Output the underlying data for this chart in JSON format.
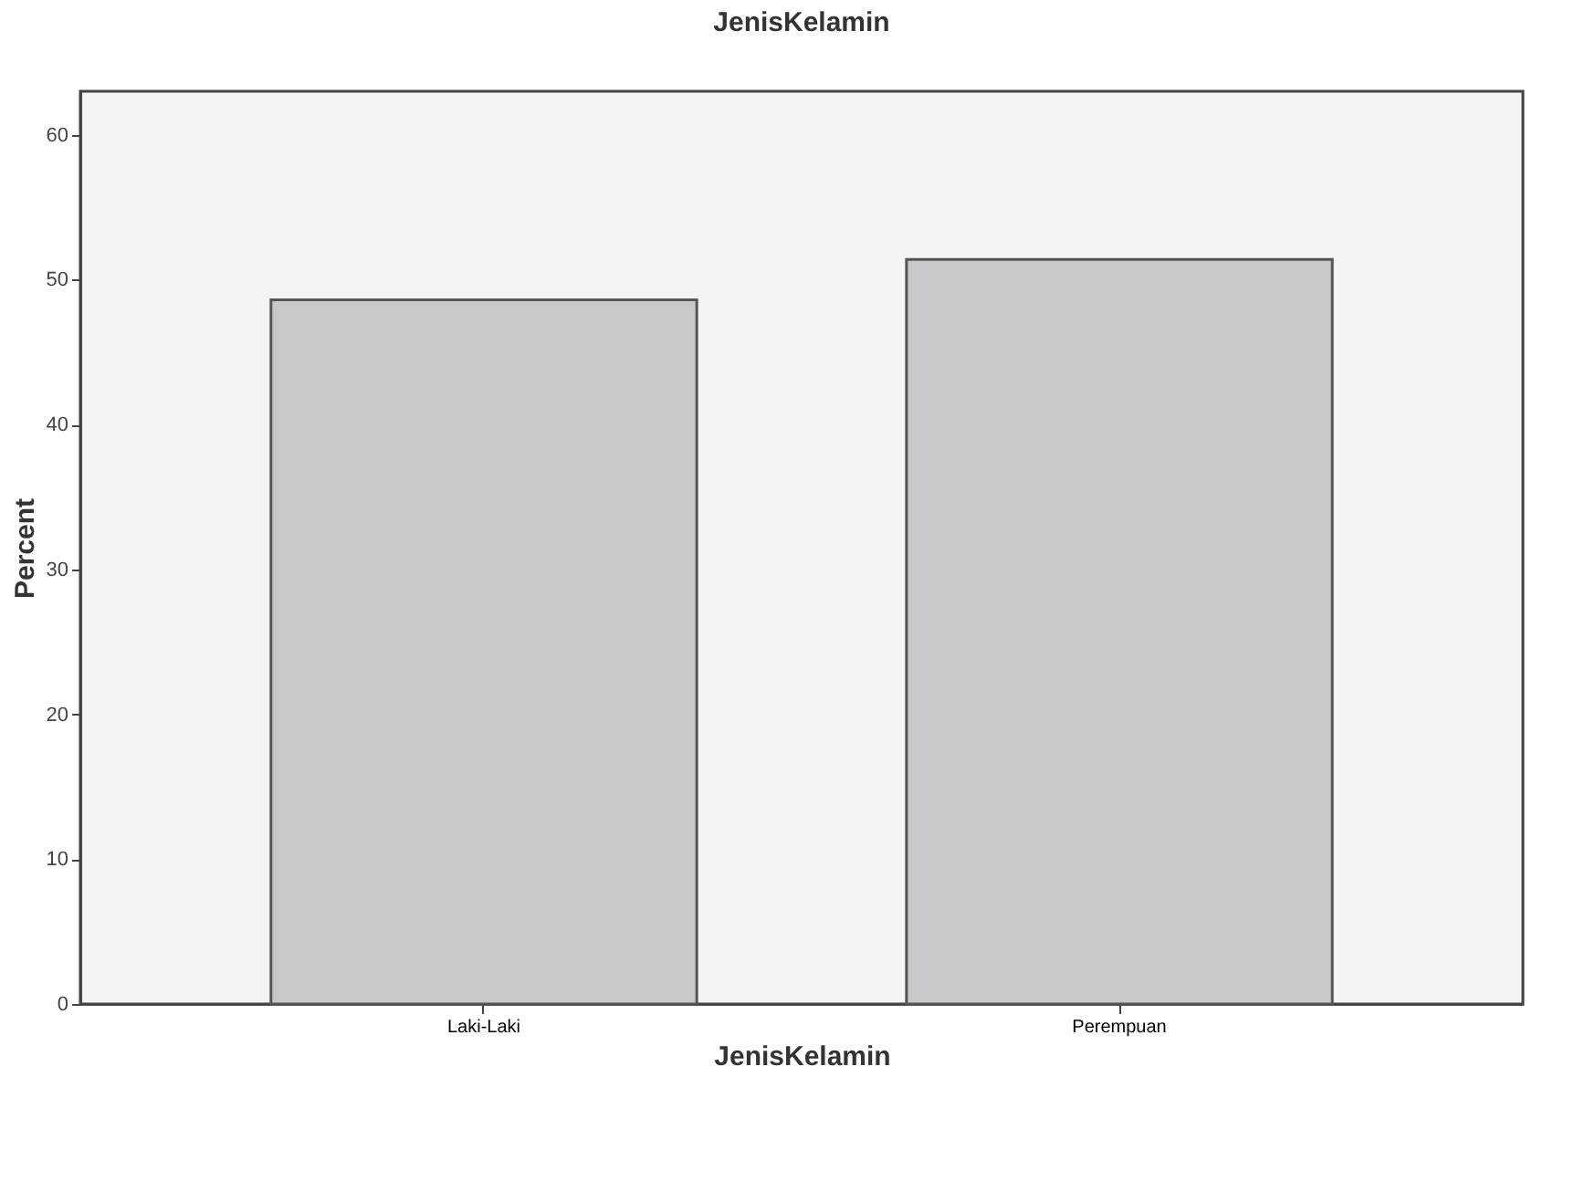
{
  "chart_data": {
    "type": "bar",
    "title": "JenisKelamin",
    "xlabel": "JenisKelamin",
    "ylabel": "Percent",
    "categories": [
      "Laki-Laki",
      "Perempuan"
    ],
    "values": [
      48.6,
      51.4
    ],
    "color": "#c8c8cc",
    "ylim": [
      0,
      63
    ],
    "yticks": [
      0,
      10,
      20,
      30,
      40,
      50,
      60
    ],
    "grid": false
  }
}
